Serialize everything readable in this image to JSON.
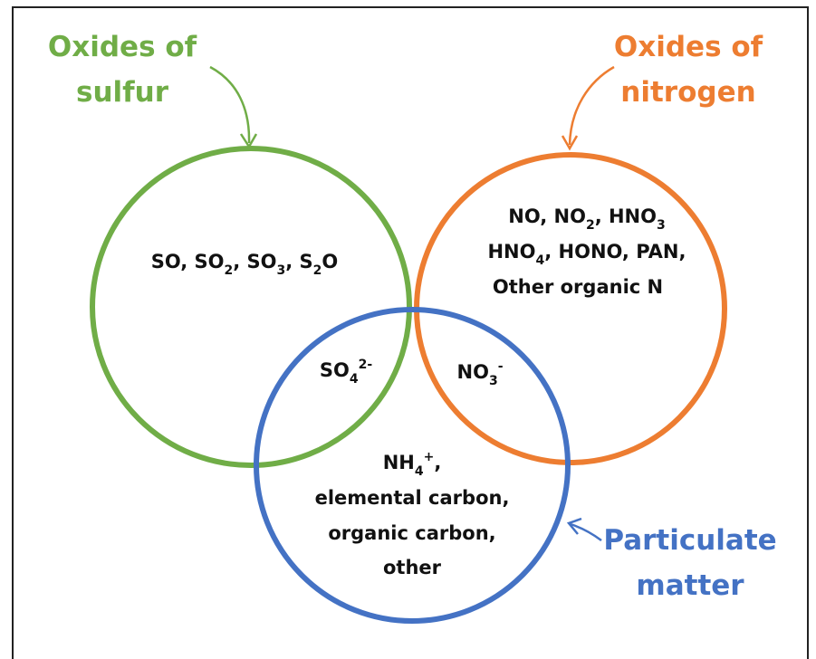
{
  "diagram": {
    "sets": [
      {
        "label": [
          "Oxides of",
          "sulfur"
        ],
        "color": "#70ad47",
        "content": [
          [
            {
              "text": "SO, SO"
            },
            {
              "sub": "2"
            },
            {
              "text": ", SO"
            },
            {
              "sub": "3"
            },
            {
              "text": ", S"
            },
            {
              "sub": "2"
            },
            {
              "text": "O"
            }
          ]
        ]
      },
      {
        "label": [
          "Oxides of",
          "nitrogen"
        ],
        "color": "#ed7d31",
        "content": [
          [
            {
              "text": "NO, NO"
            },
            {
              "sub": "2"
            },
            {
              "text": ", HNO"
            },
            {
              "sub": "3"
            }
          ],
          [
            {
              "text": "HNO"
            },
            {
              "sub": "4"
            },
            {
              "text": ", HONO, PAN,"
            }
          ],
          [
            {
              "text": "Other organic N"
            }
          ]
        ]
      },
      {
        "label": [
          "Particulate",
          "matter"
        ],
        "color": "#4472c4",
        "content": [
          [
            {
              "text": "NH"
            },
            {
              "sub": "4"
            },
            {
              "sup": "+"
            },
            {
              "text": ","
            }
          ],
          [
            {
              "text": "elemental carbon,"
            }
          ],
          [
            {
              "text": "organic carbon,"
            }
          ],
          [
            {
              "text": "other"
            }
          ]
        ]
      }
    ],
    "intersections": [
      {
        "sets": "sulfur-particulate",
        "content": [
          [
            {
              "text": "SO"
            },
            {
              "sub": "4"
            },
            {
              "sup": "2-"
            }
          ]
        ]
      },
      {
        "sets": "nitrogen-particulate",
        "content": [
          [
            {
              "text": "NO"
            },
            {
              "sub": "3"
            },
            {
              "sup": "-"
            }
          ]
        ]
      }
    ]
  }
}
